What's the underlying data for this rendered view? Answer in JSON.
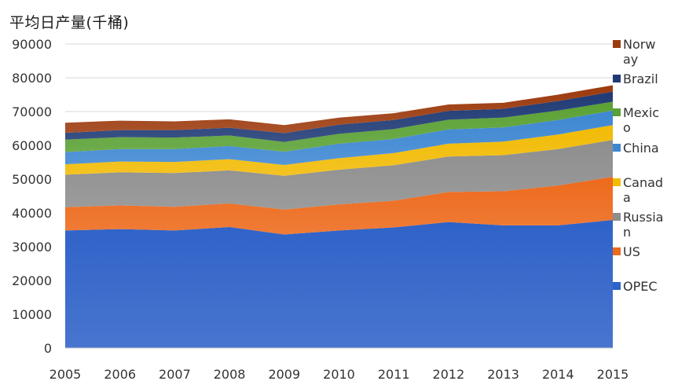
{
  "chart_data": {
    "type": "area",
    "stacked": true,
    "title": "平均日产量(千桶)",
    "xlabel": "",
    "ylabel": "",
    "ylim": [
      0,
      90000
    ],
    "yticks": [
      0,
      10000,
      20000,
      30000,
      40000,
      50000,
      60000,
      70000,
      80000,
      90000
    ],
    "grid": true,
    "legend_position": "right",
    "x": [
      2005,
      2006,
      2007,
      2008,
      2009,
      2010,
      2011,
      2012,
      2013,
      2014,
      2015
    ],
    "series": [
      {
        "name": "OPEC",
        "color": "#2f62c8",
        "values": [
          34800,
          35200,
          34800,
          35800,
          33600,
          34800,
          35700,
          37300,
          36300,
          36300,
          37900
        ]
      },
      {
        "name": "US",
        "color": "#ed6a1c",
        "values": [
          6900,
          7000,
          7000,
          7000,
          7400,
          7700,
          7900,
          8900,
          10100,
          11800,
          12800
        ]
      },
      {
        "name": "Russia",
        "color": "#8e8e8e",
        "values": [
          9600,
          9800,
          10000,
          9800,
          10000,
          10300,
          10500,
          10500,
          10700,
          10800,
          10900
        ]
      },
      {
        "name": "Canada",
        "color": "#f2bb05",
        "values": [
          3100,
          3200,
          3300,
          3300,
          3200,
          3400,
          3600,
          3800,
          4000,
          4300,
          4400
        ]
      },
      {
        "name": "China",
        "color": "#3d87d2",
        "values": [
          3600,
          3700,
          3800,
          3900,
          3900,
          4300,
          4200,
          4200,
          4200,
          4300,
          4300
        ]
      },
      {
        "name": "Mexico",
        "color": "#5ba134",
        "values": [
          3700,
          3500,
          3400,
          3100,
          2900,
          2900,
          2900,
          2900,
          2900,
          2800,
          2600
        ]
      },
      {
        "name": "Brazil",
        "color": "#1f3a74",
        "values": [
          2000,
          2100,
          2200,
          2300,
          2600,
          2700,
          2700,
          2600,
          2600,
          2800,
          3000
        ]
      },
      {
        "name": "Norway",
        "color": "#9c3a0d",
        "values": [
          3000,
          2800,
          2600,
          2500,
          2400,
          2100,
          2000,
          1900,
          1800,
          1900,
          1900
        ]
      }
    ],
    "legend_labels": [
      [
        "Norw",
        "ay"
      ],
      [
        "Brazil"
      ],
      [
        "Mexic",
        "o"
      ],
      [
        "China"
      ],
      [
        "Canad",
        "a"
      ],
      [
        "Russia",
        "n"
      ],
      [
        "US"
      ],
      [
        "OPEC"
      ]
    ]
  }
}
